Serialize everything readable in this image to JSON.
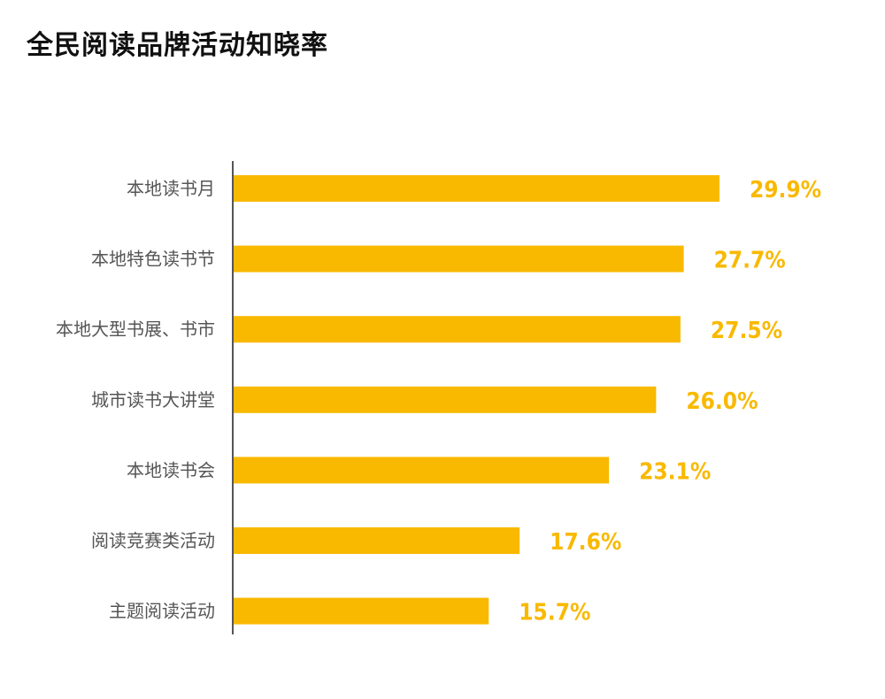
{
  "chart_data": {
    "type": "bar",
    "orientation": "horizontal",
    "title": "全民阅读品牌活动知晓率",
    "categories": [
      "本地读书月",
      "本地特色读书节",
      "本地大型书展、书市",
      "城市读书大讲堂",
      "本地读书会",
      "阅读竞赛类活动",
      "主题阅读活动"
    ],
    "values": [
      29.9,
      27.7,
      27.5,
      26.0,
      23.1,
      17.6,
      15.7
    ],
    "value_labels": [
      "29.9%",
      "27.7%",
      "27.5%",
      "26.0%",
      "23.1%",
      "17.6%",
      "15.7%"
    ],
    "unit": "%",
    "xlim": [
      0,
      100
    ],
    "grid": false,
    "legend": "none",
    "bar_color": "#F9B900",
    "label_color": "#F9B900"
  }
}
